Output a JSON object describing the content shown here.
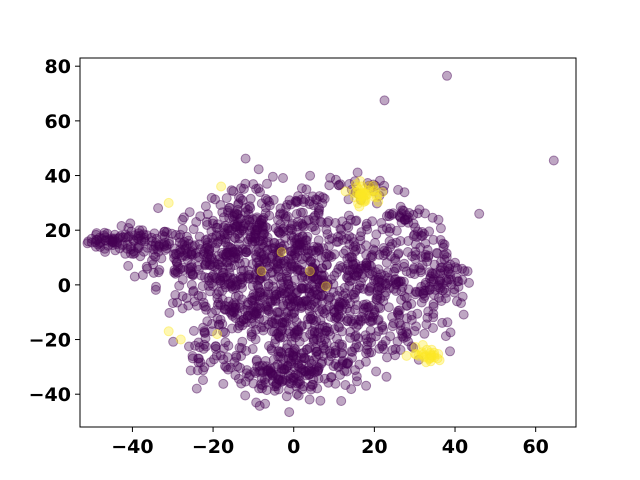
{
  "chart_data": {
    "type": "scatter",
    "title": "",
    "xlabel": "",
    "ylabel": "",
    "xlim": [
      -53,
      70
    ],
    "ylim": [
      -52,
      83
    ],
    "grid": false,
    "x_ticks": [
      -40,
      -20,
      0,
      20,
      40,
      60
    ],
    "y_ticks": [
      -40,
      -20,
      0,
      20,
      40,
      60,
      80
    ],
    "x_tick_labels": [
      "−40",
      "−20",
      "0",
      "20",
      "40",
      "60"
    ],
    "y_tick_labels": [
      "−40",
      "−20",
      "0",
      "20",
      "40",
      "60",
      "80"
    ],
    "point_alpha": 0.35,
    "series": [
      {
        "color": "#440154",
        "clusters": [
          {
            "cx": -46,
            "cy": 16,
            "sx": 2.5,
            "sy": 1.5,
            "n": 40
          },
          {
            "cx": -38,
            "cy": 15,
            "sx": 4,
            "sy": 3,
            "n": 60
          },
          {
            "cx": -28,
            "cy": 12,
            "sx": 6,
            "sy": 6,
            "n": 90
          },
          {
            "cx": -15,
            "cy": 12,
            "sx": 7,
            "sy": 10,
            "n": 170
          },
          {
            "cx": -8,
            "cy": 20,
            "sx": 9,
            "sy": 8,
            "n": 150
          },
          {
            "cx": 2,
            "cy": 10,
            "sx": 10,
            "sy": 12,
            "n": 230
          },
          {
            "cx": -12,
            "cy": -8,
            "sx": 8,
            "sy": 10,
            "n": 200
          },
          {
            "cx": 3,
            "cy": -12,
            "sx": 9,
            "sy": 11,
            "n": 230
          },
          {
            "cx": 4,
            "cy": -30,
            "sx": 7,
            "sy": 5,
            "n": 120
          },
          {
            "cx": -5,
            "cy": -35,
            "sx": 6,
            "sy": 4,
            "n": 60
          },
          {
            "cx": 15,
            "cy": 5,
            "sx": 8,
            "sy": 12,
            "n": 170
          },
          {
            "cx": 22,
            "cy": -15,
            "sx": 6,
            "sy": 9,
            "n": 90
          },
          {
            "cx": 30,
            "cy": 5,
            "sx": 6,
            "sy": 10,
            "n": 110
          },
          {
            "cx": 38,
            "cy": 3,
            "sx": 3,
            "sy": 8,
            "n": 50
          },
          {
            "cx": 28,
            "cy": 25,
            "sx": 3,
            "sy": 2,
            "n": 25
          },
          {
            "cx": 15,
            "cy": 36,
            "sx": 7,
            "sy": 3,
            "n": 30
          },
          {
            "cx": -20,
            "cy": -25,
            "sx": 4,
            "sy": 6,
            "n": 40
          }
        ],
        "outliers": [
          [
            38,
            76.5
          ],
          [
            22.5,
            67.5
          ],
          [
            64.5,
            45.5
          ],
          [
            46,
            26
          ]
        ]
      },
      {
        "color": "#fde725",
        "clusters": [
          {
            "cx": 17.5,
            "cy": 33.5,
            "sx": 2,
            "sy": 1.8,
            "n": 40
          },
          {
            "cx": 33,
            "cy": -26,
            "sx": 2,
            "sy": 1.5,
            "n": 25
          }
        ],
        "outliers": [
          [
            -31,
            30
          ],
          [
            -31,
            -17
          ],
          [
            -28,
            -20
          ],
          [
            -18,
            36
          ],
          [
            -8,
            5
          ],
          [
            -3,
            12
          ],
          [
            4,
            5
          ],
          [
            8,
            -0.5
          ],
          [
            -19,
            -18
          ],
          [
            32,
            -22
          ],
          [
            28,
            -26
          ]
        ]
      }
    ]
  }
}
